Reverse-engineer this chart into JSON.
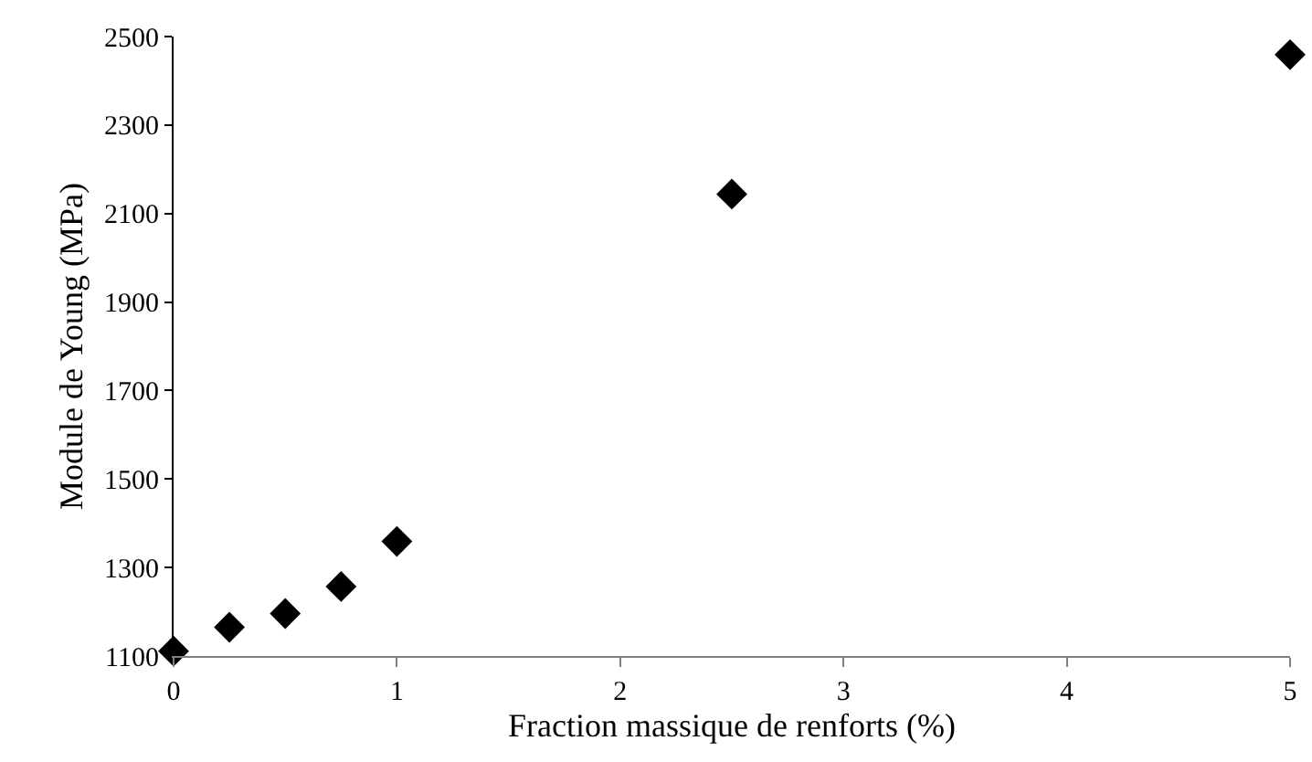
{
  "chart_data": {
    "type": "scatter",
    "xlabel": "Fraction massique de renforts (%)",
    "ylabel": "Module de Young (MPa)",
    "x": [
      0,
      0.25,
      0.5,
      0.75,
      1,
      2.5,
      5
    ],
    "series": [
      {
        "color": "#000000",
        "values": [
          1111,
          1165,
          1196,
          1257,
          1359,
          2144,
          2459
        ]
      }
    ],
    "xlim": [
      0,
      5
    ],
    "xticks": [
      0,
      1,
      2,
      3,
      4,
      5
    ],
    "ylim": [
      1100,
      2500
    ],
    "yticks": [
      1100,
      1300,
      1500,
      1700,
      1900,
      2100,
      2300,
      2500
    ],
    "marker": "diamond",
    "legend": false
  }
}
